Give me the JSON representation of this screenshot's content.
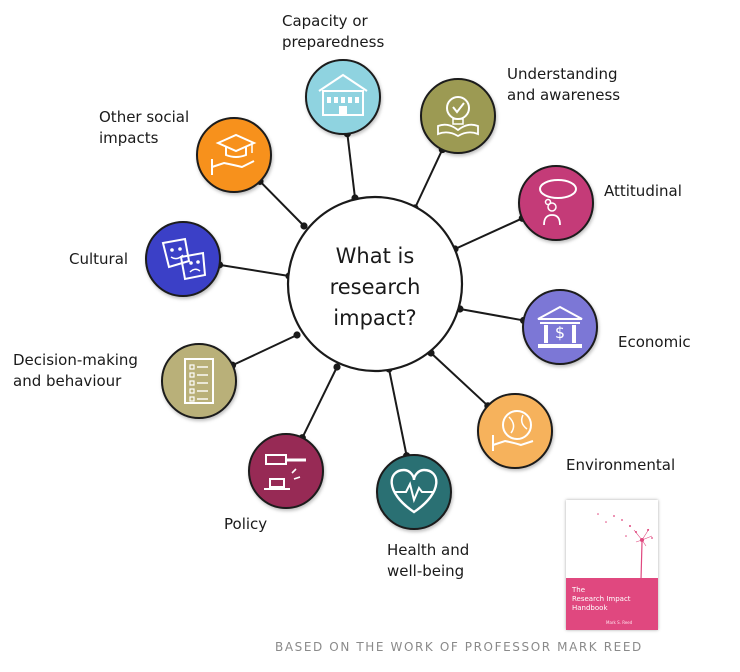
{
  "center": {
    "text": "What is\nresearch\nimpact?"
  },
  "categories": [
    {
      "id": "capacity",
      "label": "Capacity or\npreparedness",
      "color": "#8fd3e0",
      "icon": "building-icon"
    },
    {
      "id": "understanding",
      "label": "Understanding\nand awareness",
      "color": "#9c9a52",
      "icon": "lightbulb-book-icon"
    },
    {
      "id": "attitudinal",
      "label": "Attitudinal",
      "color": "#c43a78",
      "icon": "thought-bubble-person-icon"
    },
    {
      "id": "economic",
      "label": "Economic",
      "color": "#7b77d6",
      "icon": "bank-dollar-icon"
    },
    {
      "id": "environmental",
      "label": "Environmental",
      "color": "#f6b25b",
      "icon": "globe-hand-icon"
    },
    {
      "id": "health",
      "label": "Health and\nwell-being",
      "color": "#2a6f73",
      "icon": "heart-pulse-icon"
    },
    {
      "id": "policy",
      "label": "Policy",
      "color": "#972a55",
      "icon": "gavel-icon"
    },
    {
      "id": "decision",
      "label": "Decision-making\nand behaviour",
      "color": "#b9b079",
      "icon": "checklist-icon"
    },
    {
      "id": "cultural",
      "label": "Cultural",
      "color": "#3a3fc7",
      "icon": "theatre-masks-icon"
    },
    {
      "id": "social",
      "label": "Other social\nimpacts",
      "color": "#f7911d",
      "icon": "graduation-cap-hand-icon"
    }
  ],
  "book": {
    "title": "The\nResearch Impact\nHandbook",
    "author": "Mark S. Reed",
    "color": "#e0487f"
  },
  "footer": {
    "text": "BASED ON THE WORK OF PROFESSOR MARK REED"
  }
}
